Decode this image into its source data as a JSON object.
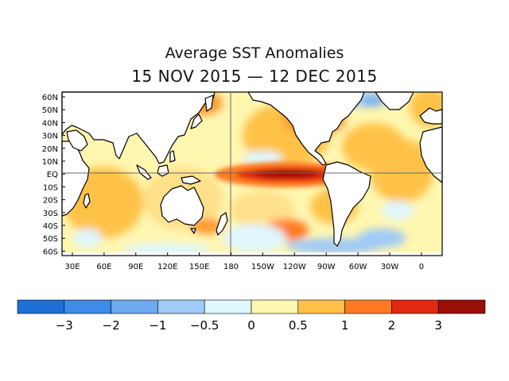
{
  "title": "Average SST Anomalies",
  "subtitle": "15 NOV 2015 — 12 DEC 2015",
  "lat_labels": [
    "60N",
    "50N",
    "40N",
    "30N",
    "20N",
    "10N",
    "EQ",
    "10S",
    "20S",
    "30S",
    "40S",
    "50S",
    "60S"
  ],
  "lon_labels": [
    "30E",
    "60E",
    "90E",
    "120E",
    "150E",
    "180",
    "150W",
    "120W",
    "90W",
    "60W",
    "30W",
    "0"
  ],
  "colorbar": {
    "tick_labels": [
      "−3",
      "−2",
      "−1",
      "−0.5",
      "0",
      "0.5",
      "1",
      "2",
      "3"
    ],
    "colors": [
      "#1f6fd8",
      "#3f8be8",
      "#6fa9ef",
      "#9fcaf6",
      "#dff7fd",
      "#fff6b0",
      "#ffc248",
      "#ff7a20",
      "#e02a10",
      "#9a0d05"
    ]
  },
  "chart_data": {
    "type": "heatmap",
    "title": "Average SST Anomalies",
    "subtitle": "15 NOV 2015 — 12 DEC 2015",
    "x_range": [
      "30E",
      "0"
    ],
    "y_range": [
      "60S",
      "60N"
    ],
    "color_levels": [
      -3,
      -2,
      -1,
      -0.5,
      0,
      0.5,
      1,
      2,
      3
    ],
    "grid": "equator and 180 meridian lines",
    "features": [
      {
        "region": "Equatorial central-eastern Pacific",
        "anomaly": 3
      },
      {
        "region": "Northeast Pacific",
        "anomaly": 1.5
      },
      {
        "region": "South Pacific near 40S 120W",
        "anomaly": 1.5
      },
      {
        "region": "Southern Ocean",
        "anomaly": -0.5
      },
      {
        "region": "North Atlantic south of Greenland",
        "anomaly": -1
      }
    ]
  }
}
